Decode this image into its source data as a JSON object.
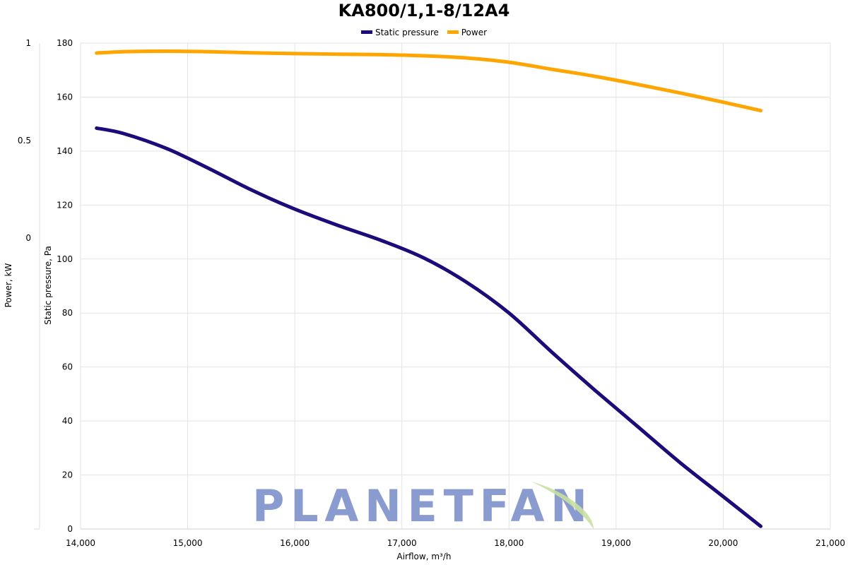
{
  "chart_data": {
    "type": "line",
    "title": "KA800/1,1-8/12A4",
    "xlabel": "Airflow, m³/h",
    "ylabel": "Static pressure, Pa",
    "y2label": "Power, kW",
    "xlim": [
      14000,
      21000
    ],
    "ylim": [
      0,
      180
    ],
    "y2ticks": [
      "1",
      "0.5",
      "0"
    ],
    "xticks": [
      "14,000",
      "15,000",
      "16,000",
      "17,000",
      "18,000",
      "19,000",
      "20,000",
      "21,000"
    ],
    "yticks": [
      "0",
      "20",
      "40",
      "60",
      "80",
      "100",
      "120",
      "140",
      "160",
      "180"
    ],
    "grid": true,
    "legend_position": "top-center",
    "series": [
      {
        "name": "Static pressure",
        "color": "#1f0a7a",
        "x": [
          14150,
          14400,
          14800,
          15200,
          15600,
          16000,
          16400,
          16800,
          17200,
          17600,
          18000,
          18400,
          18800,
          19200,
          19600,
          20000,
          20350
        ],
        "y": [
          148.5,
          146.5,
          141,
          133.5,
          125.5,
          118.5,
          112.5,
          107,
          100.5,
          91.5,
          80,
          65.5,
          51.5,
          38,
          24.5,
          12,
          1
        ]
      },
      {
        "name": "Power",
        "color": "#ffa500",
        "x": [
          14150,
          14400,
          14800,
          15200,
          15600,
          16000,
          16400,
          16800,
          17200,
          17600,
          18000,
          18400,
          18800,
          19200,
          19600,
          20000,
          20350
        ],
        "y": [
          176.3,
          176.8,
          177,
          176.8,
          176.4,
          176.1,
          175.9,
          175.7,
          175.3,
          174.5,
          172.9,
          170.3,
          167.7,
          164.7,
          161.5,
          158.1,
          155
        ]
      }
    ]
  },
  "watermark": {
    "text": "PLANETFAN",
    "color": "#8a9bd0",
    "leaf_color": "#c8e0a0"
  }
}
